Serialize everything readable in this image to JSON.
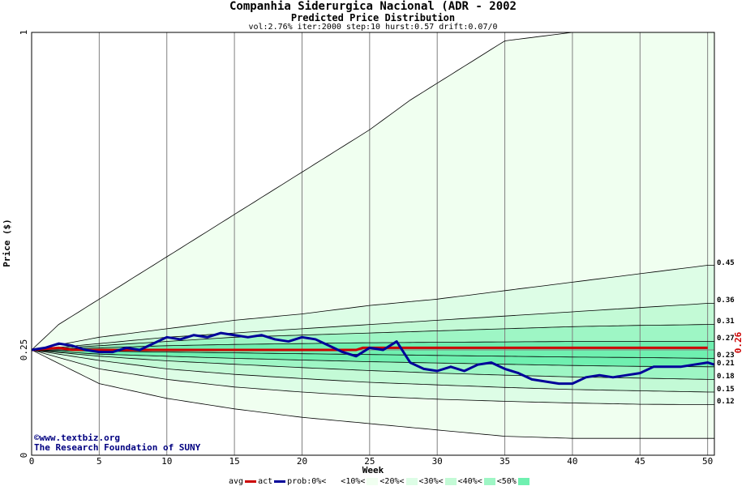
{
  "header": {
    "title": "Companhia Siderurgica Nacional (ADR - 2002",
    "subtitle": "Predicted Price Distribution",
    "params": "vol:2.76% iter:2000 step:10 hurst:0.57 drift:0.07/0"
  },
  "credit": {
    "line1": "©www.textbiz.org",
    "line2": "The Research Foundation of SUNY"
  },
  "legend": {
    "items": [
      {
        "label": "avg",
        "color": "#cc0000",
        "kind": "line"
      },
      {
        "label": "act",
        "color": "#000099",
        "kind": "line"
      },
      {
        "label": "prob:0%<",
        "color": "#ffffff",
        "kind": "box"
      },
      {
        "label": "<10%<",
        "color": "#f0fff0",
        "kind": "box"
      },
      {
        "label": "<20%<",
        "color": "#ddfde6",
        "kind": "box"
      },
      {
        "label": "<30%<",
        "color": "#c3fad6",
        "kind": "box"
      },
      {
        "label": "<40%<",
        "color": "#9ef6c5",
        "kind": "box"
      },
      {
        "label": "<50%",
        "color": "#6ff0b0",
        "kind": "box"
      }
    ]
  },
  "chart_data": {
    "type": "area",
    "title": "Companhia Siderurgica Nacional (ADR - 2002",
    "subtitle": "Predicted Price Distribution",
    "xlabel": "Week",
    "ylabel": "Price ($)",
    "xlim": [
      0,
      50.5
    ],
    "ylim": [
      0,
      1
    ],
    "x_ticks": [
      0,
      5,
      10,
      15,
      20,
      25,
      30,
      35,
      40,
      45,
      50
    ],
    "y_ticks": [
      "0",
      "0.25",
      "1"
    ],
    "grid": true,
    "current_price_label": "0.26",
    "right_labels": [
      "0.45",
      "0.36",
      "0.31",
      "0.27",
      "0.23",
      "0.21",
      "0.18",
      "0.15",
      "0.12"
    ],
    "bands": [
      {
        "name": "upper_outer",
        "weeks": [
          0,
          2,
          5,
          10,
          15,
          20,
          25,
          28,
          30,
          35,
          40,
          45,
          50
        ],
        "values": [
          0.25,
          0.31,
          0.37,
          0.47,
          0.57,
          0.67,
          0.77,
          0.84,
          0.88,
          0.98,
          1.0,
          1.0,
          1.0
        ]
      },
      {
        "name": "p90",
        "weeks": [
          0,
          5,
          10,
          15,
          20,
          25,
          30,
          35,
          40,
          45,
          50
        ],
        "values": [
          0.25,
          0.28,
          0.3,
          0.32,
          0.335,
          0.355,
          0.37,
          0.39,
          0.41,
          0.43,
          0.45
        ]
      },
      {
        "name": "p80",
        "weeks": [
          0,
          5,
          10,
          15,
          20,
          25,
          30,
          35,
          40,
          45,
          50
        ],
        "values": [
          0.25,
          0.265,
          0.28,
          0.29,
          0.3,
          0.31,
          0.32,
          0.33,
          0.34,
          0.35,
          0.36
        ]
      },
      {
        "name": "p70",
        "weeks": [
          0,
          5,
          10,
          15,
          20,
          25,
          30,
          35,
          40,
          45,
          50
        ],
        "values": [
          0.25,
          0.26,
          0.27,
          0.28,
          0.285,
          0.29,
          0.295,
          0.3,
          0.305,
          0.308,
          0.31
        ]
      },
      {
        "name": "p60",
        "weeks": [
          0,
          5,
          10,
          15,
          20,
          25,
          30,
          35,
          40,
          45,
          50
        ],
        "values": [
          0.25,
          0.255,
          0.26,
          0.263,
          0.265,
          0.267,
          0.268,
          0.269,
          0.27,
          0.27,
          0.27
        ]
      },
      {
        "name": "p40",
        "weeks": [
          0,
          5,
          10,
          15,
          20,
          25,
          30,
          35,
          40,
          45,
          50
        ],
        "values": [
          0.25,
          0.247,
          0.245,
          0.243,
          0.241,
          0.239,
          0.237,
          0.235,
          0.233,
          0.232,
          0.23
        ]
      },
      {
        "name": "p30",
        "weeks": [
          0,
          5,
          10,
          15,
          20,
          25,
          30,
          35,
          40,
          45,
          50
        ],
        "values": [
          0.25,
          0.24,
          0.235,
          0.23,
          0.226,
          0.222,
          0.219,
          0.216,
          0.213,
          0.211,
          0.21
        ]
      },
      {
        "name": "p20",
        "weeks": [
          0,
          5,
          10,
          15,
          20,
          25,
          30,
          35,
          40,
          45,
          50
        ],
        "values": [
          0.25,
          0.235,
          0.224,
          0.216,
          0.208,
          0.201,
          0.195,
          0.19,
          0.186,
          0.183,
          0.18
        ]
      },
      {
        "name": "p10",
        "weeks": [
          0,
          5,
          10,
          15,
          20,
          25,
          30,
          35,
          40,
          45,
          50
        ],
        "values": [
          0.25,
          0.225,
          0.205,
          0.192,
          0.182,
          0.173,
          0.167,
          0.161,
          0.156,
          0.153,
          0.15
        ]
      },
      {
        "name": "lower_outer",
        "weeks": [
          0,
          5,
          10,
          15,
          20,
          25,
          30,
          35,
          40,
          45,
          50
        ],
        "values": [
          0.25,
          0.205,
          0.18,
          0.162,
          0.15,
          0.14,
          0.133,
          0.128,
          0.124,
          0.121,
          0.12
        ]
      },
      {
        "name": "lower_far",
        "weeks": [
          0,
          5,
          10,
          15,
          20,
          25,
          30,
          35,
          40,
          45,
          50
        ],
        "values": [
          0.25,
          0.17,
          0.135,
          0.11,
          0.09,
          0.075,
          0.06,
          0.045,
          0.04,
          0.04,
          0.04
        ]
      }
    ],
    "series": [
      {
        "name": "avg",
        "weeks": [
          0,
          2,
          3,
          24,
          24.5,
          50
        ],
        "values": [
          0.25,
          0.255,
          0.25,
          0.25,
          0.255,
          0.255
        ]
      },
      {
        "name": "act",
        "weeks": [
          0,
          1,
          2,
          3,
          4,
          5,
          6,
          7,
          8,
          9,
          10,
          11,
          12,
          13,
          14,
          15,
          16,
          17,
          18,
          19,
          20,
          21,
          22,
          23,
          24,
          25,
          26,
          27,
          27.5,
          28,
          29,
          30,
          31,
          32,
          33,
          34,
          35,
          36,
          37,
          38,
          39,
          40,
          41,
          42,
          43,
          44,
          45,
          46,
          47,
          48,
          49,
          50,
          50.5
        ],
        "values": [
          0.25,
          0.255,
          0.265,
          0.26,
          0.25,
          0.245,
          0.245,
          0.255,
          0.25,
          0.265,
          0.28,
          0.275,
          0.285,
          0.28,
          0.29,
          0.285,
          0.28,
          0.285,
          0.275,
          0.27,
          0.28,
          0.275,
          0.26,
          0.245,
          0.235,
          0.255,
          0.25,
          0.27,
          0.245,
          0.22,
          0.205,
          0.2,
          0.21,
          0.2,
          0.215,
          0.22,
          0.205,
          0.195,
          0.18,
          0.175,
          0.17,
          0.17,
          0.185,
          0.19,
          0.185,
          0.19,
          0.195,
          0.21,
          0.21,
          0.21,
          0.215,
          0.22,
          0.215
        ]
      }
    ]
  }
}
